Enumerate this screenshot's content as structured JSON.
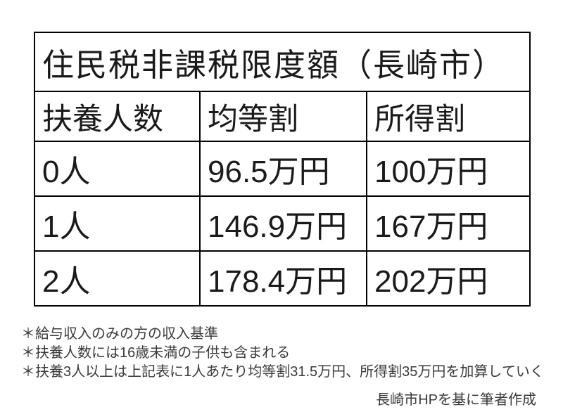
{
  "chart_data": {
    "type": "table",
    "title": "住民税非課税限度額（長崎市）",
    "columns": [
      "扶養人数",
      "均等割",
      "所得割"
    ],
    "rows": [
      [
        "0人",
        "96.5万円",
        "100万円"
      ],
      [
        "1人",
        "146.9万円",
        "167万円"
      ],
      [
        "2人",
        "178.4万円",
        "202万円"
      ]
    ],
    "numeric": {
      "dependents": [
        0,
        1,
        2
      ],
      "per_capita_levy_man_yen": [
        96.5,
        146.9,
        178.4
      ],
      "income_levy_man_yen": [
        100,
        167,
        202
      ]
    },
    "notes": [
      "＊給与収入のみの方の収入基準",
      "＊扶養人数には16歳未満の子供も含まれる",
      "＊扶養3人以上は上記表に1人あたり均等割31.5万円、所得割35万円を加算していく"
    ],
    "source": "長崎市HPを基に筆者作成",
    "colors": {
      "background": "#ffffff",
      "border": "#000000",
      "table_text": "#1a1a1a",
      "note_text": "#3a3a3a"
    }
  }
}
